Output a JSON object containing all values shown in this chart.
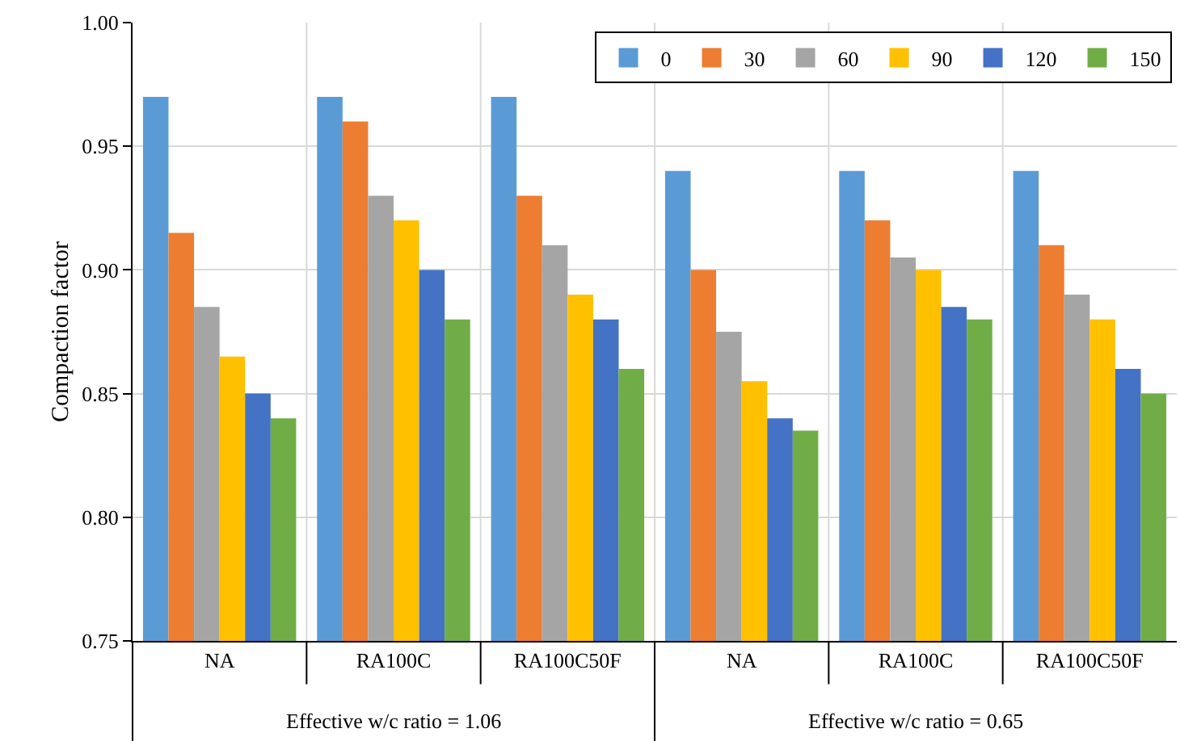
{
  "chart_data": {
    "type": "bar",
    "ylabel": "Compaction factor",
    "categories": [
      "NA",
      "RA100C",
      "RA100C50F",
      "NA",
      "RA100C",
      "RA100C50F"
    ],
    "series": [
      {
        "name": "0",
        "color": "#5b9bd5",
        "values": [
          0.97,
          0.97,
          0.97,
          0.94,
          0.94,
          0.94
        ]
      },
      {
        "name": "30",
        "color": "#ed7d31",
        "values": [
          0.915,
          0.96,
          0.93,
          0.9,
          0.92,
          0.91
        ]
      },
      {
        "name": "60",
        "color": "#a5a5a5",
        "values": [
          0.885,
          0.93,
          0.91,
          0.875,
          0.905,
          0.89
        ]
      },
      {
        "name": "90",
        "color": "#ffc000",
        "values": [
          0.865,
          0.92,
          0.89,
          0.855,
          0.9,
          0.88
        ]
      },
      {
        "name": "120",
        "color": "#4472c4",
        "values": [
          0.85,
          0.9,
          0.88,
          0.84,
          0.885,
          0.86
        ]
      },
      {
        "name": "150",
        "color": "#70ad47",
        "values": [
          0.84,
          0.88,
          0.86,
          0.835,
          0.88,
          0.85
        ]
      }
    ],
    "annotations": [
      "Effective w/c ratio = 1.06",
      "Effective w/c ratio = 0.65"
    ],
    "ylim": [
      0.75,
      1.0
    ],
    "yticks": [
      {
        "value": 0.75,
        "label": "0.75"
      },
      {
        "value": 0.8,
        "label": "0.80"
      },
      {
        "value": 0.85,
        "label": "0.85"
      },
      {
        "value": 0.9,
        "label": "0.90"
      },
      {
        "value": 0.95,
        "label": "0.95"
      },
      {
        "value": 1.0,
        "label": "1.00"
      }
    ],
    "grid": true,
    "legend": "top right"
  }
}
